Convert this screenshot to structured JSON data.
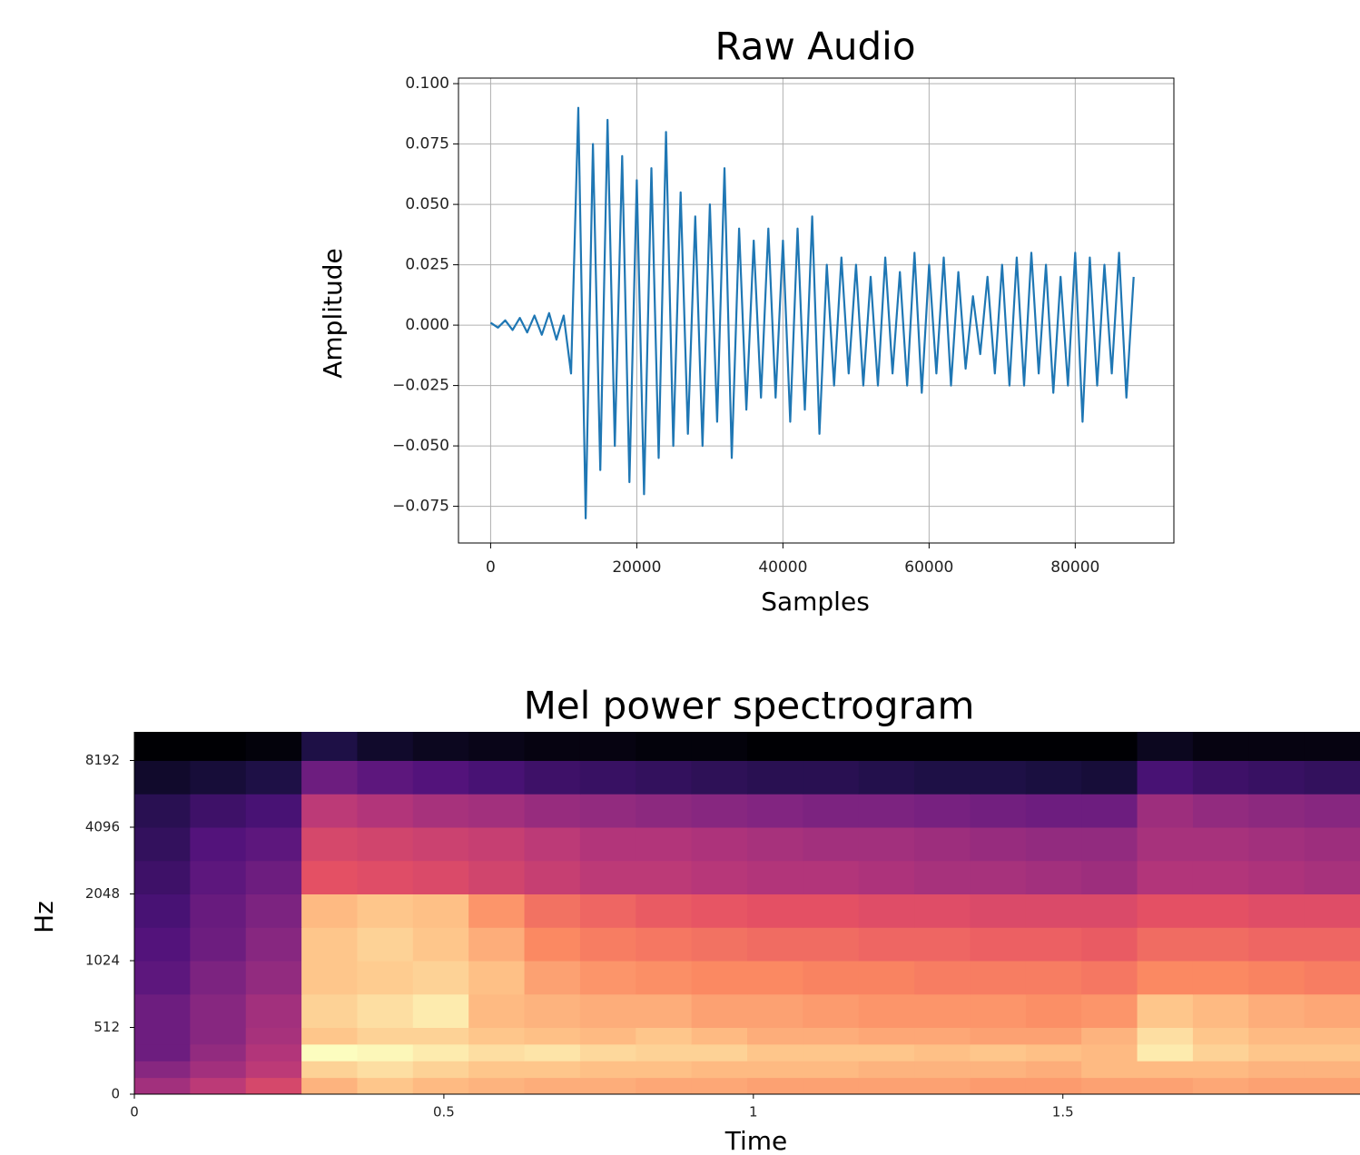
{
  "chart_data": [
    {
      "type": "line",
      "title": "Raw Audio",
      "x_label": "Samples",
      "y_label": "Amplitude",
      "color": "#1f77b4",
      "grid": true,
      "xlim": [
        -4400,
        93500
      ],
      "ylim": [
        -0.0902,
        0.1023
      ],
      "xticks": [
        0,
        20000,
        40000,
        60000,
        80000
      ],
      "yticks": [
        {
          "value": -0.075,
          "label": "−0.075"
        },
        {
          "value": -0.05,
          "label": "−0.050"
        },
        {
          "value": -0.025,
          "label": "−0.025"
        },
        {
          "value": 0,
          "label": "0.000"
        },
        {
          "value": 0.025,
          "label": "0.025"
        },
        {
          "value": 0.05,
          "label": "0.050"
        },
        {
          "value": 0.075,
          "label": "0.075"
        },
        {
          "value": 0.1,
          "label": "0.100"
        }
      ],
      "x": [
        0,
        1000,
        2000,
        3000,
        4000,
        5000,
        6000,
        7000,
        8000,
        9000,
        10000,
        11000,
        12000,
        13000,
        14000,
        15000,
        16000,
        17000,
        18000,
        19000,
        20000,
        21000,
        22000,
        23000,
        24000,
        25000,
        26000,
        27000,
        28000,
        29000,
        30000,
        31000,
        32000,
        33000,
        34000,
        35000,
        36000,
        37000,
        38000,
        39000,
        40000,
        41000,
        42000,
        43000,
        44000,
        45000,
        46000,
        47000,
        48000,
        49000,
        50000,
        51000,
        52000,
        53000,
        54000,
        55000,
        56000,
        57000,
        58000,
        59000,
        60000,
        61000,
        62000,
        63000,
        64000,
        65000,
        66000,
        67000,
        68000,
        69000,
        70000,
        71000,
        72000,
        73000,
        74000,
        75000,
        76000,
        77000,
        78000,
        79000,
        80000,
        81000,
        82000,
        83000,
        84000,
        85000,
        86000,
        87000,
        88000
      ],
      "values": [
        0.001,
        -0.001,
        0.002,
        -0.002,
        0.003,
        -0.003,
        0.004,
        -0.004,
        0.005,
        -0.006,
        0.004,
        -0.02,
        0.09,
        -0.08,
        0.075,
        -0.06,
        0.085,
        -0.05,
        0.07,
        -0.065,
        0.06,
        -0.07,
        0.065,
        -0.055,
        0.08,
        -0.05,
        0.055,
        -0.045,
        0.045,
        -0.05,
        0.05,
        -0.04,
        0.065,
        -0.055,
        0.04,
        -0.035,
        0.035,
        -0.03,
        0.04,
        -0.03,
        0.035,
        -0.04,
        0.04,
        -0.035,
        0.045,
        -0.045,
        0.025,
        -0.025,
        0.028,
        -0.02,
        0.025,
        -0.025,
        0.02,
        -0.025,
        0.028,
        -0.02,
        0.022,
        -0.025,
        0.03,
        -0.028,
        0.025,
        -0.02,
        0.028,
        -0.025,
        0.022,
        -0.018,
        0.012,
        -0.012,
        0.02,
        -0.02,
        0.025,
        -0.025,
        0.028,
        -0.025,
        0.03,
        -0.02,
        0.025,
        -0.028,
        0.02,
        -0.025,
        0.03,
        -0.04,
        0.028,
        -0.025,
        0.025,
        -0.02,
        0.03,
        -0.03,
        0.02
      ]
    },
    {
      "type": "heatmap",
      "title": "Mel power spectrogram",
      "x_label": "Time",
      "y_label": "Hz",
      "cmap": "magma",
      "yscale": "symlog",
      "xlim": [
        0,
        1.98
      ],
      "ylim": [
        0,
        11025
      ],
      "xticks": [
        0,
        0.5,
        1,
        1.5
      ],
      "yticks": [
        0,
        512,
        1024,
        2048,
        4096,
        8192
      ],
      "x_bins": [
        0,
        0.09,
        0.18,
        0.27,
        0.36,
        0.45,
        0.54,
        0.63,
        0.72,
        0.81,
        0.9,
        0.99,
        1.08,
        1.17,
        1.26,
        1.35,
        1.44,
        1.53,
        1.62,
        1.71,
        1.8,
        1.89,
        1.98
      ],
      "y_bins": [
        0,
        128,
        256,
        384,
        512,
        724,
        1024,
        1448,
        2048,
        2896,
        4096,
        5793,
        8192,
        11025
      ],
      "values": [
        [
          -45,
          -40,
          -35,
          -15,
          -12,
          -14,
          -15,
          -16,
          -16,
          -17,
          -17,
          -18,
          -18,
          -18,
          -18,
          -19,
          -19,
          -18,
          -18,
          -17,
          -18,
          -18
        ],
        [
          -50,
          -45,
          -40,
          -10,
          -8,
          -10,
          -12,
          -12,
          -13,
          -13,
          -14,
          -14,
          -14,
          -15,
          -15,
          -15,
          -16,
          -14,
          -14,
          -14,
          -15,
          -15
        ],
        [
          -55,
          -48,
          -42,
          -3,
          -4,
          -6,
          -8,
          -7,
          -9,
          -10,
          -10,
          -12,
          -12,
          -12,
          -13,
          -12,
          -13,
          -14,
          -6,
          -10,
          -12,
          -12
        ],
        [
          -55,
          -50,
          -44,
          -12,
          -10,
          -10,
          -12,
          -13,
          -14,
          -12,
          -14,
          -16,
          -16,
          -17,
          -17,
          -18,
          -18,
          -15,
          -8,
          -12,
          -14,
          -14
        ],
        [
          -55,
          -50,
          -45,
          -10,
          -8,
          -6,
          -14,
          -15,
          -16,
          -16,
          -18,
          -18,
          -19,
          -20,
          -20,
          -20,
          -21,
          -20,
          -12,
          -14,
          -16,
          -17
        ],
        [
          -58,
          -52,
          -48,
          -12,
          -11,
          -10,
          -13,
          -18,
          -20,
          -21,
          -22,
          -22,
          -23,
          -23,
          -24,
          -24,
          -24,
          -25,
          -22,
          -22,
          -23,
          -24
        ],
        [
          -60,
          -55,
          -50,
          -12,
          -10,
          -12,
          -16,
          -22,
          -24,
          -25,
          -26,
          -27,
          -27,
          -28,
          -28,
          -29,
          -29,
          -30,
          -27,
          -27,
          -28,
          -28
        ],
        [
          -62,
          -56,
          -52,
          -14,
          -12,
          -13,
          -20,
          -26,
          -28,
          -30,
          -31,
          -32,
          -32,
          -33,
          -33,
          -34,
          -34,
          -34,
          -32,
          -32,
          -33,
          -33
        ],
        [
          -64,
          -58,
          -55,
          -32,
          -33,
          -34,
          -36,
          -38,
          -40,
          -40,
          -41,
          -42,
          -42,
          -43,
          -44,
          -44,
          -45,
          -46,
          -42,
          -42,
          -43,
          -44
        ],
        [
          -66,
          -60,
          -58,
          -35,
          -36,
          -37,
          -38,
          -40,
          -42,
          -42,
          -43,
          -44,
          -45,
          -45,
          -46,
          -47,
          -48,
          -48,
          -44,
          -44,
          -45,
          -46
        ],
        [
          -68,
          -64,
          -62,
          -40,
          -42,
          -44,
          -45,
          -47,
          -48,
          -49,
          -50,
          -51,
          -52,
          -52,
          -53,
          -54,
          -55,
          -55,
          -46,
          -48,
          -49,
          -50
        ],
        [
          -74,
          -72,
          -70,
          -55,
          -58,
          -60,
          -62,
          -64,
          -65,
          -66,
          -67,
          -68,
          -68,
          -69,
          -70,
          -70,
          -71,
          -72,
          -62,
          -64,
          -65,
          -66
        ],
        [
          -80,
          -80,
          -79,
          -70,
          -74,
          -76,
          -77,
          -78,
          -78,
          -79,
          -79,
          -80,
          -80,
          -80,
          -80,
          -80,
          -80,
          -80,
          -76,
          -78,
          -78,
          -78
        ]
      ]
    }
  ]
}
